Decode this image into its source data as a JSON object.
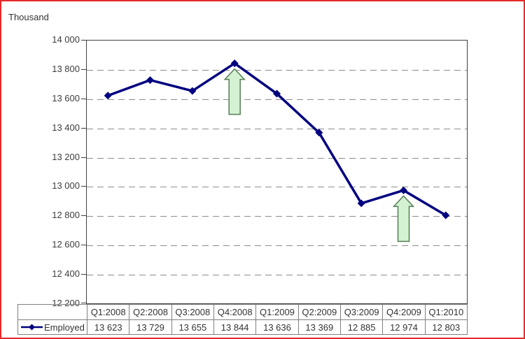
{
  "colors": {
    "series_line": "#000080",
    "grid": "#8c8c8c",
    "axis": "#404040",
    "arrow_fill": "#d2f2d2",
    "arrow_stroke": "#567d56",
    "frame_border": "#e52929",
    "table_border": "#7f7f7f",
    "text": "#333333"
  },
  "chart_data": {
    "type": "line",
    "unit_label": "Thousand",
    "categories": [
      "Q1:2008",
      "Q2:2008",
      "Q3:2008",
      "Q4:2008",
      "Q1:2009",
      "Q2:2009",
      "Q3:2009",
      "Q4:2009",
      "Q1:2010"
    ],
    "series": [
      {
        "name": "Employed",
        "values": [
          13623,
          13729,
          13655,
          13844,
          13636,
          13369,
          12885,
          12974,
          12803
        ],
        "color": "#000080",
        "marker": "diamond"
      }
    ],
    "ylim": [
      12200,
      14000
    ],
    "ytick_interval": 200,
    "ytick_labels": [
      "14 000",
      "13 800",
      "13 600",
      "13 400",
      "13 200",
      "13 000",
      "12 800",
      "12 600",
      "12 400",
      "12 200"
    ],
    "grid": "dashed-horizontal",
    "legend_position": "bottom-left-table",
    "annotations": [
      {
        "type": "up-arrow",
        "category": "Q4:2008"
      },
      {
        "type": "up-arrow",
        "category": "Q4:2009"
      }
    ]
  },
  "table": {
    "legend_label": "Employed",
    "headers": [
      "Q1:2008",
      "Q2:2008",
      "Q3:2008",
      "Q4:2008",
      "Q1:2009",
      "Q2:2009",
      "Q3:2009",
      "Q4:2009",
      "Q1:2010"
    ],
    "values": [
      "13 623",
      "13 729",
      "13 655",
      "13 844",
      "13 636",
      "13 369",
      "12 885",
      "12 974",
      "12 803"
    ]
  }
}
